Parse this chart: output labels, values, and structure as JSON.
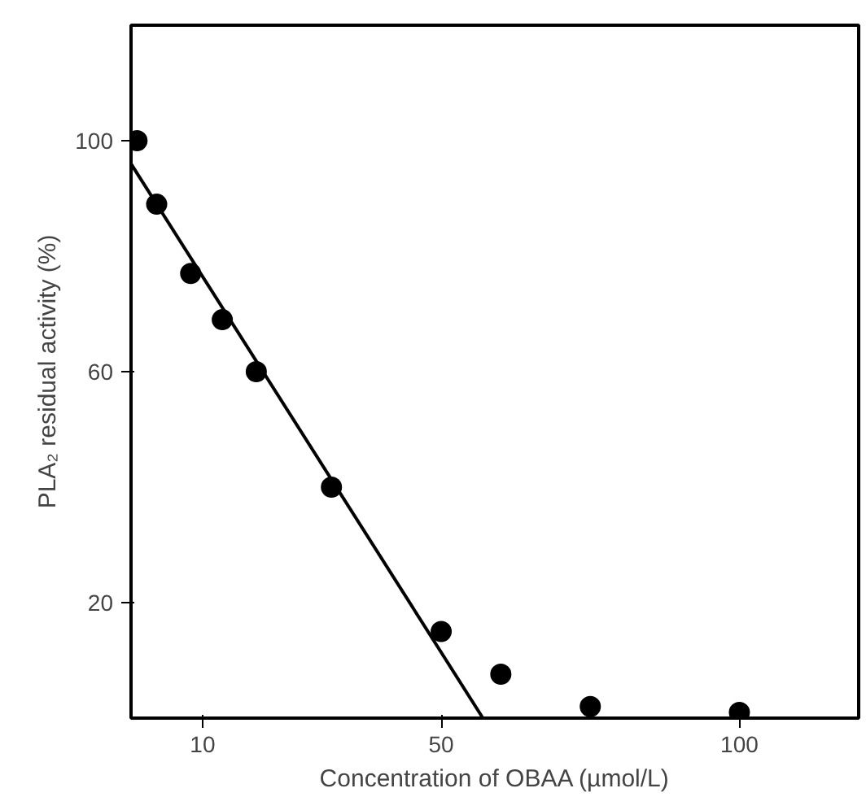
{
  "chart_data": {
    "type": "scatter",
    "xlabel": "Concentration of OBAA (µmol/L)",
    "ylabel": "PLA₂ residual activity (%)",
    "x": [
      -1,
      2.3,
      8,
      13.3,
      19,
      31.6,
      50,
      60,
      75,
      100
    ],
    "series": [
      {
        "color": "#000000",
        "marker": "circle",
        "values": [
          100,
          89,
          77,
          69,
          60,
          40,
          15,
          7.6,
          2,
          1
        ]
      },
      {
        "type": "line",
        "color": "#000000",
        "x": [
          -2,
          57
        ],
        "values": [
          96,
          0
        ]
      }
    ],
    "xlim": [
      -2,
      120
    ],
    "ylim": [
      0,
      120
    ],
    "xticks": [
      10,
      50,
      100
    ],
    "yticks": [
      20,
      60,
      100
    ],
    "grid": false
  }
}
